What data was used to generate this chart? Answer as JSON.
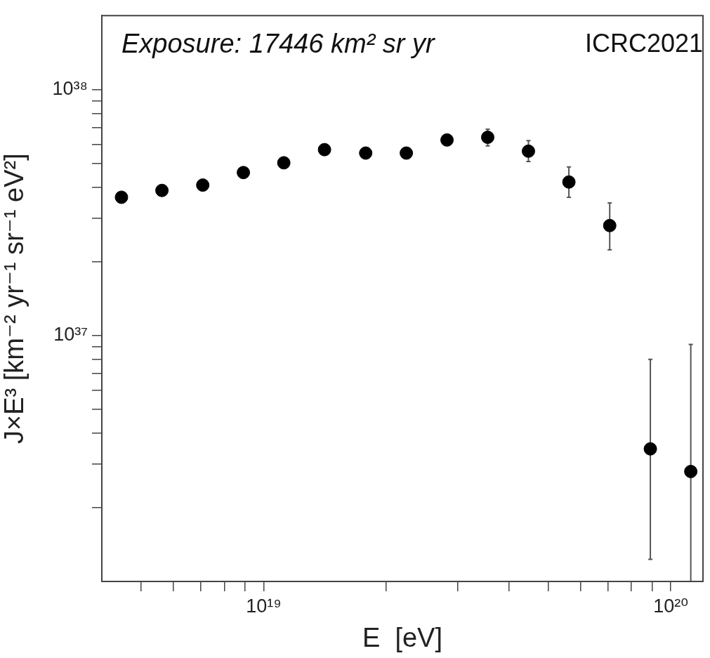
{
  "chart_data": {
    "type": "scatter",
    "title": "Exposure: 17446 km² sr yr",
    "xlabel": "E  [eV]",
    "ylabel": "J×E³ [km⁻² yr⁻¹ sr⁻¹ eV²]",
    "annotations": [
      "ICRC2021"
    ],
    "x": [
      4.47e+18,
      5.62e+18,
      7.08e+18,
      8.91e+18,
      1.12e+19,
      1.41e+19,
      1.78e+19,
      2.24e+19,
      2.82e+19,
      3.55e+19,
      4.47e+19,
      5.62e+19,
      7.08e+19,
      8.91e+19,
      1.12e+20
    ],
    "series": [
      {
        "color": "#000000",
        "values": [
          3.65e+37,
          3.89e+37,
          4.09e+37,
          4.6e+37,
          5.04e+37,
          5.7e+37,
          5.52e+37,
          5.52e+37,
          6.24e+37,
          6.4e+37,
          5.62e+37,
          4.21e+37,
          2.8e+37,
          3.46e+36,
          2.8e+36
        ],
        "errors": [
          null,
          null,
          null,
          null,
          null,
          null,
          null,
          null,
          null,
          [
            5.9e+37,
            6.9e+37
          ],
          [
            5.1e+37,
            6.2e+37
          ],
          [
            3.65e+37,
            4.85e+37
          ],
          [
            2.23e+37,
            3.46e+37
          ],
          [
            1.23e+36,
            8e+36
          ],
          [
            1e+36,
            9.2e+36
          ]
        ]
      }
    ],
    "log": "xy",
    "marker": "circle",
    "legend": false,
    "xlim": [
      4e+18,
      1.2e+20
    ],
    "xticks": [
      {
        "value": 5e+18,
        "label": null
      },
      {
        "value": 6e+18,
        "label": null
      },
      {
        "value": 7e+18,
        "label": null
      },
      {
        "value": 8e+18,
        "label": null
      },
      {
        "value": 9e+18,
        "label": null
      },
      {
        "value": 1e+19,
        "label": "10¹⁹"
      },
      {
        "value": 2e+19,
        "label": null
      },
      {
        "value": 3e+19,
        "label": null
      },
      {
        "value": 4e+19,
        "label": null
      },
      {
        "value": 5e+19,
        "label": null
      },
      {
        "value": 6e+19,
        "label": null
      },
      {
        "value": 7e+19,
        "label": null
      },
      {
        "value": 8e+19,
        "label": null
      },
      {
        "value": 9e+19,
        "label": null
      },
      {
        "value": 1e+20,
        "label": "10²⁰"
      }
    ],
    "ylim": [
      1e+36,
      2e+38
    ],
    "yticks": [
      {
        "value": 2e+36,
        "label": null
      },
      {
        "value": 3e+36,
        "label": null
      },
      {
        "value": 4e+36,
        "label": null
      },
      {
        "value": 5e+36,
        "label": null
      },
      {
        "value": 6e+36,
        "label": null
      },
      {
        "value": 7e+36,
        "label": null
      },
      {
        "value": 8e+36,
        "label": null
      },
      {
        "value": 9e+36,
        "label": null
      },
      {
        "value": 1e+37,
        "label": "10³⁷"
      },
      {
        "value": 2e+37,
        "label": null
      },
      {
        "value": 3e+37,
        "label": null
      },
      {
        "value": 4e+37,
        "label": null
      },
      {
        "value": 5e+37,
        "label": null
      },
      {
        "value": 6e+37,
        "label": null
      },
      {
        "value": 7e+37,
        "label": null
      },
      {
        "value": 8e+37,
        "label": null
      },
      {
        "value": 9e+37,
        "label": null
      },
      {
        "value": 1e+38,
        "label": "10³⁸"
      }
    ]
  }
}
